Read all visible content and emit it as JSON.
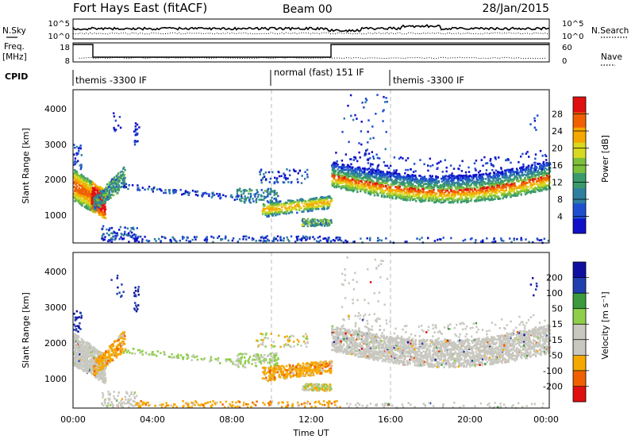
{
  "header": {
    "station": "Fort Hays East (fitACF)",
    "beam": "Beam 00",
    "date": "28/Jan/2015"
  },
  "noise_panel": {
    "left_label": "N.Sky",
    "left_ticks": [
      "10^5",
      "10^0"
    ],
    "right_label": "N.Search",
    "right_ticks": [
      "10^5",
      "10^0"
    ]
  },
  "freq_panel": {
    "left_label_1": "Freq.",
    "left_label_2": "[MHz]",
    "left_ticks": [
      "18",
      "8"
    ],
    "right_label": "Nave",
    "right_ticks": [
      "60",
      "0"
    ]
  },
  "cpid": {
    "label": "CPID",
    "segments": [
      {
        "text": "themis -3300 IF",
        "start": 0,
        "end": 10
      },
      {
        "text": "normal (fast) 151 IF",
        "start": 10,
        "end": 16
      },
      {
        "text": "themis -3300 IF",
        "start": 16,
        "end": 24
      }
    ]
  },
  "chart_data": [
    {
      "type": "heatmap",
      "name": "power",
      "ylabel": "Slant Range [km]",
      "yticks": [
        "1000",
        "2000",
        "3000",
        "4000"
      ],
      "ylim": [
        200,
        4500
      ],
      "xlim": [
        0,
        24
      ],
      "colorbar": {
        "label": "Power [dB]",
        "ticks": [
          "4",
          "8",
          "12",
          "16",
          "20",
          "24",
          "28"
        ],
        "range": [
          0,
          32
        ]
      }
    },
    {
      "type": "heatmap",
      "name": "velocity",
      "ylabel": "Slant Range [km]",
      "yticks": [
        "1000",
        "2000",
        "3000",
        "4000"
      ],
      "ylim": [
        200,
        4500
      ],
      "xlim": [
        0,
        24
      ],
      "xticks": [
        "00:00",
        "04:00",
        "08:00",
        "12:00",
        "16:00",
        "20:00",
        "00:00"
      ],
      "xlabel": "Time UT",
      "colorbar": {
        "label": "Velocity [m s⁻¹]",
        "ticks": [
          "200",
          "100",
          "50",
          "15",
          "-15",
          "-50",
          "-100",
          "-200"
        ]
      }
    }
  ],
  "colors": {
    "power_scale": [
      "#1010c8",
      "#1f4fd0",
      "#2f7fa0",
      "#3b9a6b",
      "#7cbf3a",
      "#d8d820",
      "#f5a800",
      "#f06000",
      "#e01010"
    ],
    "velocity_scale": [
      "#e01010",
      "#f06000",
      "#f5a800",
      "#c8c8c0",
      "#c8c8c0",
      "#8fce4a",
      "#3b9a3b",
      "#2040b0",
      "#1010a0"
    ]
  }
}
